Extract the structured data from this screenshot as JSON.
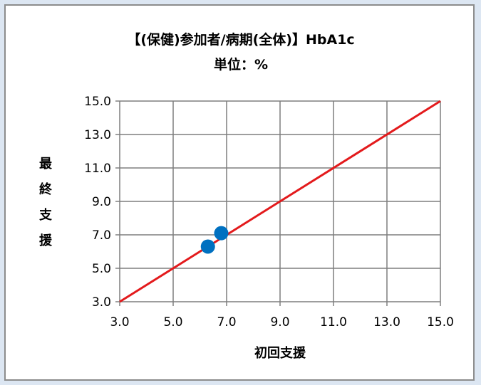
{
  "chart_data": {
    "type": "scatter",
    "title": "【(保健)参加者/病期(全体)】HbA1c",
    "subtitle": "単位：%",
    "xlabel": "初回支援",
    "ylabel": "最終支援",
    "xlim": [
      3.0,
      15.0
    ],
    "ylim": [
      3.0,
      15.0
    ],
    "xticks": [
      "3.0",
      "5.0",
      "7.0",
      "9.0",
      "11.0",
      "13.0",
      "15.0"
    ],
    "yticks": [
      "3.0",
      "5.0",
      "7.0",
      "9.0",
      "11.0",
      "13.0",
      "15.0"
    ],
    "grid": true,
    "legend": "none",
    "points": [
      {
        "x": 6.3,
        "y": 6.3
      },
      {
        "x": 6.8,
        "y": 7.1
      }
    ],
    "reference_line": {
      "from": [
        3.0,
        3.0
      ],
      "to": [
        15.0,
        15.0
      ]
    },
    "colors": {
      "points": "#0070c0",
      "reference_line": "#e31a1c",
      "grid": "#7f7f7f"
    }
  }
}
